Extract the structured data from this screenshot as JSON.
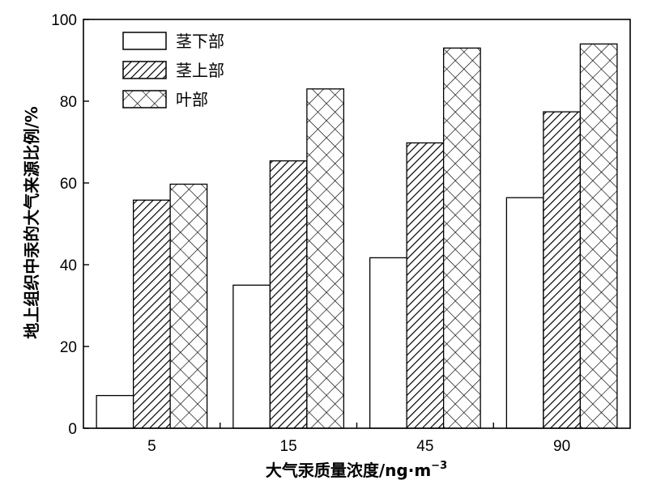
{
  "chart_data": {
    "type": "bar",
    "categories": [
      "5",
      "15",
      "45",
      "90"
    ],
    "series": [
      {
        "name": "茎下部",
        "values": [
          8,
          35,
          41.7,
          56.4
        ],
        "pattern": "none"
      },
      {
        "name": "茎上部",
        "values": [
          55.8,
          65.4,
          69.8,
          77.4
        ],
        "pattern": "diagonal"
      },
      {
        "name": "叶部",
        "values": [
          59.7,
          83,
          93,
          94
        ],
        "pattern": "crosshatch"
      }
    ],
    "title": "",
    "xlabel": "大气汞质量浓度/ng·m",
    "xlabel_superscript": "−3",
    "ylabel": "地上组织中汞的大气来源比例/%",
    "ylim": [
      0,
      100
    ],
    "yticks": [
      0,
      20,
      40,
      60,
      80,
      100
    ],
    "grid": false,
    "legend_position": "top-left"
  }
}
